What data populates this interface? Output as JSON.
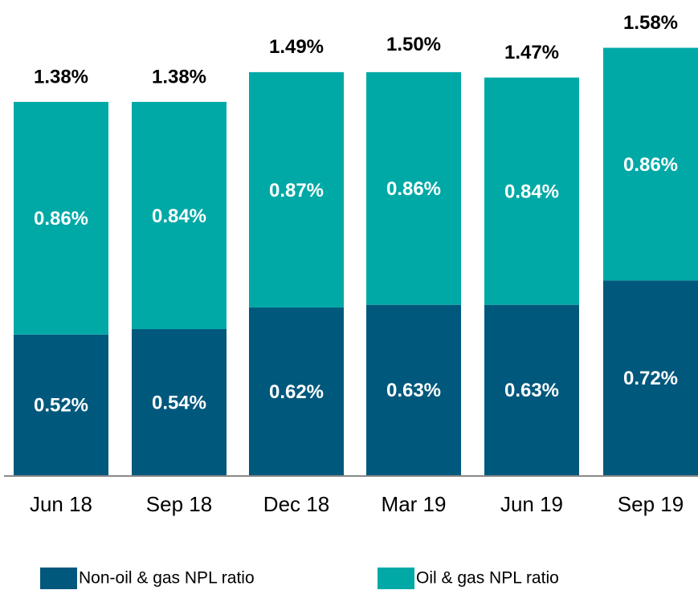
{
  "chart_data": {
    "type": "stacked_bar",
    "categories": [
      "Jun 18",
      "Sep 18",
      "Dec 18",
      "Mar 19",
      "Jun 19",
      "Sep 19"
    ],
    "series": [
      {
        "name": "Non-oil & gas NPL ratio",
        "color": "#00587c",
        "values": [
          0.52,
          0.54,
          0.62,
          0.63,
          0.63,
          0.72
        ],
        "value_labels": [
          "0.52%",
          "0.54%",
          "0.62%",
          "0.63%",
          "0.63%",
          "0.72%"
        ]
      },
      {
        "name": "Oil & gas NPL ratio",
        "color": "#00a9a6",
        "values": [
          0.86,
          0.84,
          0.87,
          0.86,
          0.84,
          0.86
        ],
        "value_labels": [
          "0.86%",
          "0.84%",
          "0.87%",
          "0.86%",
          "0.84%",
          "0.86%"
        ]
      }
    ],
    "totals": [
      1.38,
      1.38,
      1.49,
      1.5,
      1.47,
      1.58
    ],
    "total_labels": [
      "1.38%",
      "1.38%",
      "1.49%",
      "1.50%",
      "1.47%",
      "1.58%"
    ]
  }
}
